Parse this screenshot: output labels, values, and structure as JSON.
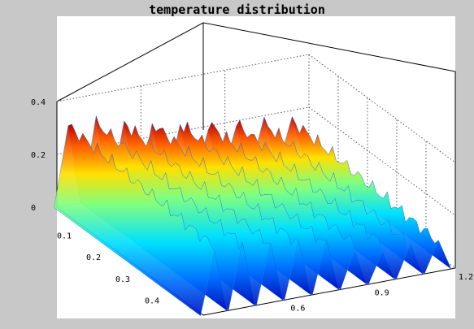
{
  "chart_data": {
    "type": "surface",
    "title": "temperature distribution",
    "colormap": "jet",
    "x_ticks": [
      "0.1",
      "0.2",
      "0.3",
      "0.4"
    ],
    "y_ticks": [
      "0.6",
      "0.9",
      "1.2"
    ],
    "z_ticks": [
      "0",
      "0.2",
      "0.4"
    ],
    "xlim": [
      0,
      0.5
    ],
    "ylim": [
      0.3,
      1.2
    ],
    "zlim": [
      0,
      0.4
    ],
    "grid": true,
    "ridges": [
      {
        "y": 0.34,
        "peak": 0.3
      },
      {
        "y": 0.44,
        "peak": 0.29
      },
      {
        "y": 0.54,
        "peak": 0.27
      },
      {
        "y": 0.64,
        "peak": 0.25
      },
      {
        "y": 0.74,
        "peak": 0.23
      },
      {
        "y": 0.84,
        "peak": 0.21
      },
      {
        "y": 0.94,
        "peak": 0.19
      },
      {
        "y": 1.04,
        "peak": 0.17
      },
      {
        "y": 1.14,
        "peak": 0.16
      }
    ]
  }
}
